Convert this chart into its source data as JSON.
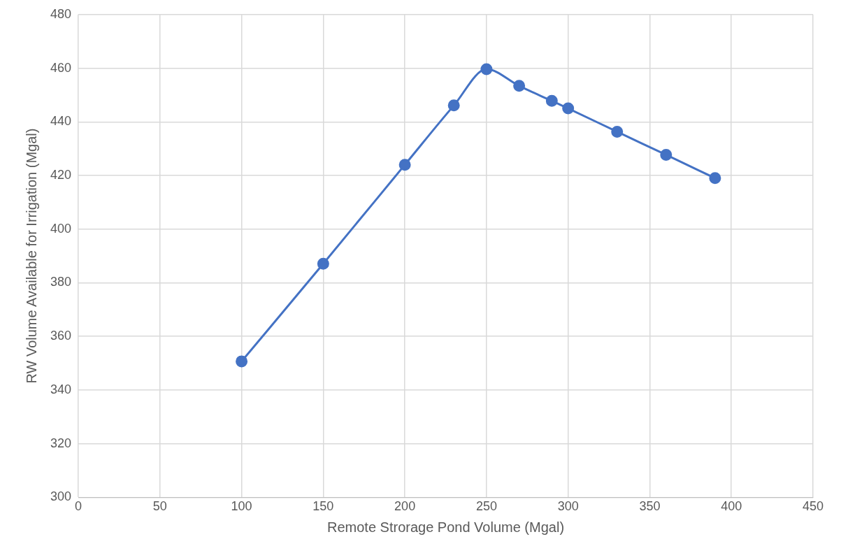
{
  "chart_data": {
    "type": "line",
    "xlabel": "Remote Strorage Pond Volume (Mgal)",
    "ylabel": "RW Volume Available for Irrigation (Mgal)",
    "x": [
      100,
      150,
      200,
      230,
      250,
      270,
      290,
      300,
      330,
      360,
      390
    ],
    "series": [
      {
        "color": "#4472c4",
        "values": [
          350.7,
          387.1,
          424,
          446.1,
          459.6,
          453.4,
          447.8,
          445,
          436.3,
          427.7,
          419
        ]
      }
    ],
    "xlim": [
      0,
      450
    ],
    "xticks": [
      0,
      50,
      100,
      150,
      200,
      250,
      300,
      350,
      400,
      450
    ],
    "ylim": [
      300,
      480
    ],
    "yticks": [
      300,
      320,
      340,
      360,
      380,
      400,
      420,
      440,
      460,
      480
    ],
    "grid": true,
    "marker": "circle",
    "line_style": "solid"
  }
}
